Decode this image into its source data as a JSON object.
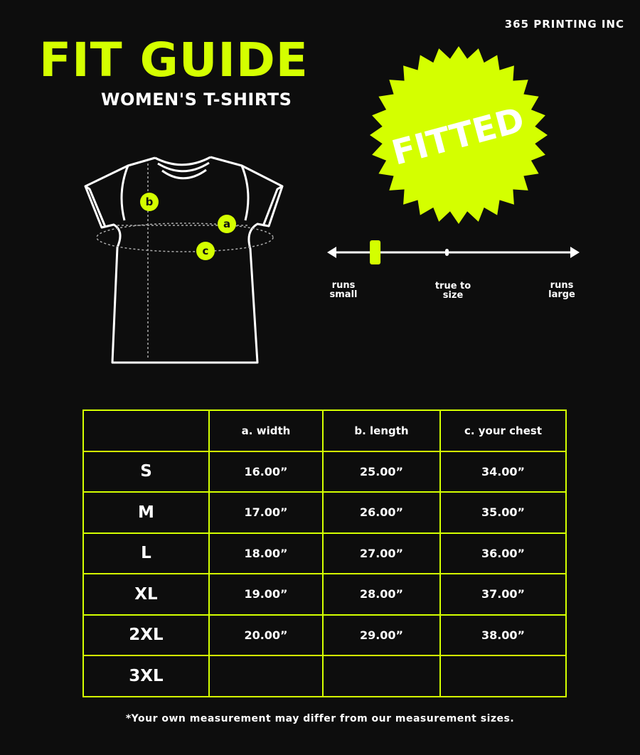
{
  "brand": "365 PRINTING INC",
  "title": "FIT GUIDE",
  "subtitle": "WOMEN'S T-SHIRTS",
  "badge": "FITTED",
  "accent_color": "#d4ff00",
  "diagram": {
    "markers": [
      "a",
      "b",
      "c"
    ]
  },
  "fit_scale": {
    "labels": {
      "left": [
        "runs",
        "small"
      ],
      "middle": [
        "true to",
        "size"
      ],
      "right": [
        "runs",
        "large"
      ]
    },
    "position_fraction": 0.18
  },
  "table": {
    "headers": [
      "",
      "a. width",
      "b. length",
      "c. your chest"
    ],
    "rows": [
      [
        "S",
        "16.00”",
        "25.00”",
        "34.00”"
      ],
      [
        "M",
        "17.00”",
        "26.00”",
        "35.00”"
      ],
      [
        "L",
        "18.00”",
        "27.00”",
        "36.00”"
      ],
      [
        "XL",
        "19.00”",
        "28.00”",
        "37.00”"
      ],
      [
        "2XL",
        "20.00”",
        "29.00”",
        "38.00”"
      ],
      [
        "3XL",
        "",
        "",
        ""
      ]
    ]
  },
  "note": "*Your own measurement may differ from our measurement sizes."
}
